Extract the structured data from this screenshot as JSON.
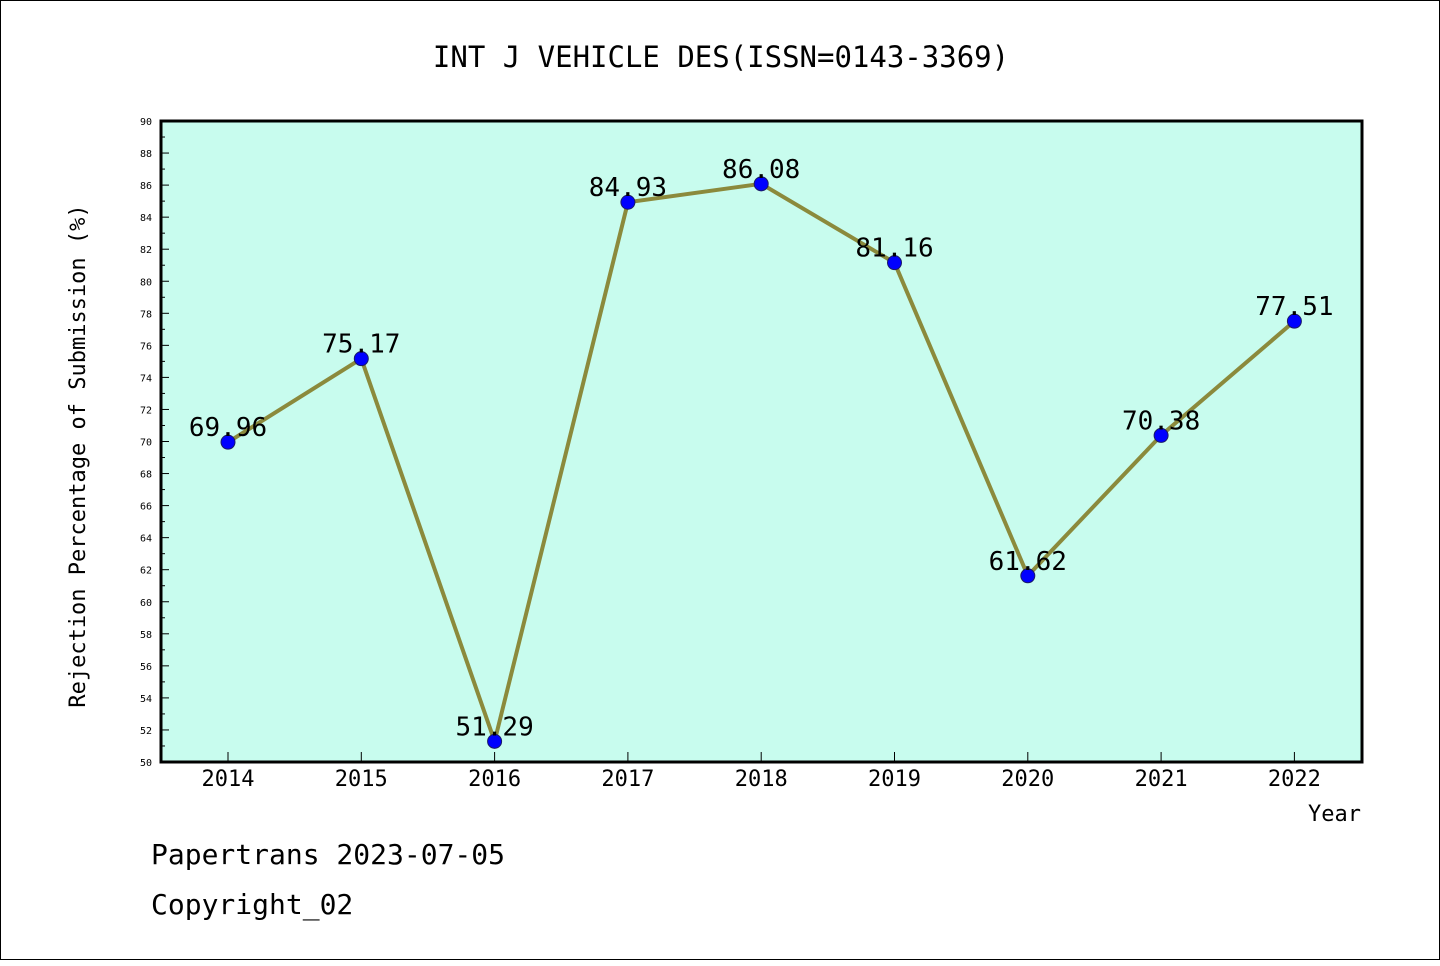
{
  "chart_data": {
    "type": "line",
    "title": "INT J VEHICLE DES(ISSN=0143-3369)",
    "xlabel": "Year",
    "ylabel": "Rejection Percentage of Submission (%)",
    "categories": [
      "2014",
      "2015",
      "2016",
      "2017",
      "2018",
      "2019",
      "2020",
      "2021",
      "2022"
    ],
    "series": [
      {
        "values": [
          69.96,
          75.17,
          51.29,
          84.93,
          86.08,
          81.16,
          61.62,
          70.38,
          77.51
        ],
        "labels": [
          "69.96",
          "75.17",
          "51.29",
          "84.93",
          "86.08",
          "81.16",
          "61.62",
          "70.38",
          "77.51"
        ]
      }
    ],
    "ylim": [
      50,
      90
    ],
    "yticks": [
      "50",
      "52",
      "54",
      "56",
      "58",
      "60",
      "62",
      "64",
      "66",
      "68",
      "70",
      "72",
      "74",
      "76",
      "78",
      "80",
      "82",
      "84",
      "86",
      "88",
      "90"
    ],
    "grid": false,
    "colors": {
      "plot_background": "#c8fcee",
      "line": "#8b8a3c",
      "marker": "#0000ff"
    }
  },
  "footer": {
    "line1": "Papertrans 2023-07-05",
    "line2": "Copyright_02"
  }
}
